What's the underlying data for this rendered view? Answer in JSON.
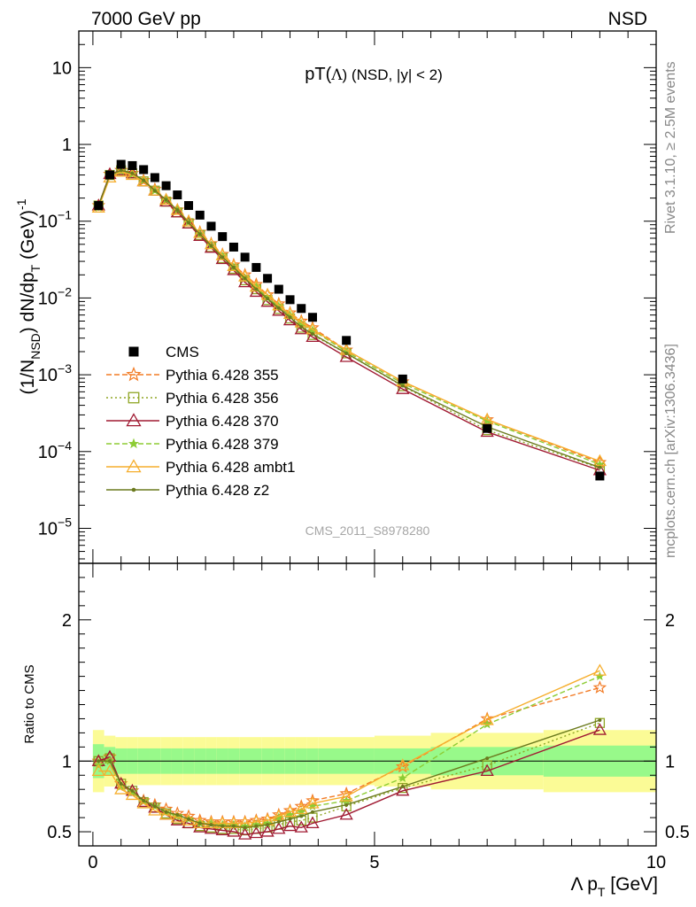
{
  "header": {
    "left": "7000 GeV pp",
    "right": "NSD",
    "side_top": "Rivet 3.1.10, ≥ 2.5M events",
    "side_bottom": "mcplots.cern.ch [arXiv:1306.3436]",
    "analysis_id": "CMS_2011_S8978280"
  },
  "colors": {
    "cms": "#000000",
    "p355": "#f27b25",
    "p356": "#8fa624",
    "p370": "#a01a32",
    "p379": "#8dcc34",
    "ambt1": "#f6ae2d",
    "z2": "#6b7a1e",
    "band_inner": "#98f98a",
    "band_outer": "#fbfb96"
  },
  "chart_data": [
    {
      "type": "line",
      "title": "pT(Λ) (NSD, |y| < 2)",
      "title_main": "pT(",
      "title_lambda": "Λ",
      "title_rest": ") (NSD, |y| < 2)",
      "ylabel_parts": {
        "a": "(1/N",
        "sub1": "NSD",
        "b": ") dN/dp",
        "sub2": "T",
        "c": " (GeV)",
        "sup": "-1"
      },
      "yscale": "log",
      "ylim": [
        3.5e-06,
        30
      ],
      "xlim": [
        -0.25,
        10
      ],
      "y_ticks": [
        {
          "value": 10,
          "label": "10"
        },
        {
          "value": 1,
          "label": "1"
        },
        {
          "value": 0.1,
          "base": "10",
          "exp": "−1"
        },
        {
          "value": 0.01,
          "base": "10",
          "exp": "−2"
        },
        {
          "value": 0.001,
          "base": "10",
          "exp": "−3"
        },
        {
          "value": 0.0001,
          "base": "10",
          "exp": "−4"
        },
        {
          "value": 1e-05,
          "base": "10",
          "exp": "−5"
        }
      ],
      "legend_position": "middle-left",
      "x": [
        0.1,
        0.3,
        0.5,
        0.7,
        0.9,
        1.1,
        1.3,
        1.5,
        1.7,
        1.9,
        2.1,
        2.3,
        2.5,
        2.7,
        2.9,
        3.1,
        3.3,
        3.5,
        3.7,
        3.9,
        4.5,
        5.5,
        7.0,
        9.0
      ],
      "series": [
        {
          "name": "CMS",
          "key": "cms",
          "marker": "square",
          "dash": "none",
          "values": [
            0.16,
            0.4,
            0.55,
            0.53,
            0.47,
            0.37,
            0.29,
            0.22,
            0.16,
            0.12,
            0.086,
            0.063,
            0.046,
            0.034,
            0.025,
            0.018,
            0.013,
            0.0095,
            0.0073,
            0.0056,
            0.0028,
            0.00088,
            0.0002,
            4.8e-05
          ]
        },
        {
          "name": "Pythia 6.428 355",
          "key": "p355",
          "marker": "star",
          "dash": "6,3",
          "values": [
            0.16,
            0.41,
            0.46,
            0.42,
            0.34,
            0.26,
            0.19,
            0.14,
            0.1,
            0.072,
            0.051,
            0.037,
            0.027,
            0.02,
            0.015,
            0.011,
            0.0084,
            0.0064,
            0.005,
            0.0041,
            0.0021,
            0.00081,
            0.00026,
            7.2e-05
          ]
        },
        {
          "name": "Pythia 6.428 356",
          "key": "p356",
          "marker": "square-open",
          "dash": "2,3",
          "values": [
            0.16,
            0.4,
            0.46,
            0.42,
            0.33,
            0.25,
            0.18,
            0.13,
            0.094,
            0.066,
            0.046,
            0.033,
            0.024,
            0.017,
            0.013,
            0.0094,
            0.0072,
            0.0054,
            0.0041,
            0.0033,
            0.0019,
            0.00071,
            0.00019,
            6.1e-05
          ]
        },
        {
          "name": "Pythia 6.428 370",
          "key": "p370",
          "marker": "triangle-open",
          "dash": "none",
          "values": [
            0.16,
            0.41,
            0.46,
            0.42,
            0.33,
            0.25,
            0.18,
            0.13,
            0.093,
            0.064,
            0.045,
            0.032,
            0.023,
            0.016,
            0.012,
            0.0089,
            0.0068,
            0.0051,
            0.0039,
            0.0031,
            0.0017,
            0.00065,
            0.00018,
            5.7e-05
          ]
        },
        {
          "name": "Pythia 6.428 379",
          "key": "p379",
          "marker": "star-small",
          "dash": "6,3",
          "values": [
            0.15,
            0.39,
            0.45,
            0.41,
            0.34,
            0.25,
            0.19,
            0.14,
            0.097,
            0.068,
            0.048,
            0.035,
            0.025,
            0.018,
            0.014,
            0.01,
            0.0078,
            0.006,
            0.0046,
            0.0038,
            0.002,
            0.00077,
            0.00025,
            6.8e-05
          ]
        },
        {
          "name": "Pythia 6.428 ambt1",
          "key": "ambt1",
          "marker": "triangle-open",
          "dash": "none",
          "values": [
            0.15,
            0.37,
            0.44,
            0.4,
            0.33,
            0.25,
            0.19,
            0.14,
            0.099,
            0.07,
            0.05,
            0.036,
            0.026,
            0.019,
            0.014,
            0.011,
            0.008,
            0.0062,
            0.0048,
            0.0039,
            0.0021,
            0.00082,
            0.00026,
            7.5e-05
          ]
        },
        {
          "name": "Pythia 6.428 z2",
          "key": "z2",
          "marker": "dot",
          "dash": "none",
          "values": [
            0.16,
            0.4,
            0.46,
            0.42,
            0.34,
            0.25,
            0.19,
            0.14,
            0.096,
            0.068,
            0.048,
            0.034,
            0.025,
            0.018,
            0.013,
            0.0098,
            0.0074,
            0.0056,
            0.0042,
            0.0034,
            0.0019,
            0.00072,
            0.00021,
            6.2e-05
          ]
        }
      ]
    },
    {
      "type": "line",
      "ylabel": "Ratio to CMS",
      "xlabel_parts": {
        "a": "Λ p",
        "sub": "T",
        "b": " [GeV]"
      },
      "ylim": [
        0.4,
        2.4
      ],
      "xlim": [
        -0.25,
        10
      ],
      "y_ticks": [
        {
          "value": 0.5,
          "label": "0.5"
        },
        {
          "value": 1,
          "label": "1"
        },
        {
          "value": 2,
          "label": "2"
        }
      ],
      "x_ticks": [
        {
          "value": 0,
          "label": "0"
        },
        {
          "value": 5,
          "label": "5"
        },
        {
          "value": 10,
          "label": "10"
        }
      ],
      "band_edges": [
        0,
        0.2,
        0.4,
        0.6,
        0.8,
        1.0,
        1.2,
        1.4,
        1.6,
        1.8,
        2.0,
        2.2,
        2.4,
        2.6,
        2.8,
        3.0,
        3.2,
        3.4,
        3.6,
        3.8,
        4.0,
        5.0,
        6.0,
        8.0,
        10.0
      ],
      "band_inner": [
        0.12,
        0.1,
        0.09,
        0.09,
        0.09,
        0.09,
        0.09,
        0.09,
        0.09,
        0.09,
        0.09,
        0.09,
        0.09,
        0.09,
        0.09,
        0.09,
        0.09,
        0.09,
        0.09,
        0.09,
        0.09,
        0.09,
        0.1,
        0.11
      ],
      "band_outer": [
        0.22,
        0.18,
        0.17,
        0.17,
        0.17,
        0.17,
        0.17,
        0.17,
        0.17,
        0.17,
        0.17,
        0.17,
        0.17,
        0.17,
        0.17,
        0.17,
        0.17,
        0.17,
        0.17,
        0.17,
        0.17,
        0.18,
        0.2,
        0.22
      ],
      "x": [
        0.1,
        0.3,
        0.5,
        0.7,
        0.9,
        1.1,
        1.3,
        1.5,
        1.7,
        1.9,
        2.1,
        2.3,
        2.5,
        2.7,
        2.9,
        3.1,
        3.3,
        3.5,
        3.7,
        3.9,
        4.5,
        5.5,
        7.0,
        9.0
      ],
      "series": [
        {
          "name": "Pythia 6.428 355",
          "key": "p355",
          "marker": "star",
          "dash": "6,3",
          "values": [
            1.0,
            1.03,
            0.84,
            0.79,
            0.72,
            0.69,
            0.66,
            0.63,
            0.61,
            0.58,
            0.57,
            0.57,
            0.57,
            0.57,
            0.58,
            0.59,
            0.62,
            0.65,
            0.68,
            0.72,
            0.77,
            0.96,
            1.3,
            1.52
          ]
        },
        {
          "name": "Pythia 6.428 356",
          "key": "p356",
          "marker": "square-open",
          "dash": "2,3",
          "values": [
            1.0,
            1.02,
            0.84,
            0.79,
            0.71,
            0.67,
            0.63,
            0.59,
            0.56,
            0.54,
            0.53,
            0.52,
            0.52,
            0.51,
            0.52,
            0.53,
            0.55,
            0.57,
            0.58,
            0.6,
            0.68,
            0.81,
            0.97,
            1.27
          ]
        },
        {
          "name": "Pythia 6.428 370",
          "key": "p370",
          "marker": "triangle-open",
          "dash": "none",
          "values": [
            1.0,
            1.03,
            0.84,
            0.79,
            0.71,
            0.67,
            0.62,
            0.58,
            0.56,
            0.53,
            0.52,
            0.51,
            0.5,
            0.48,
            0.49,
            0.5,
            0.52,
            0.54,
            0.53,
            0.56,
            0.62,
            0.79,
            0.93,
            1.22
          ]
        },
        {
          "name": "Pythia 6.428 379",
          "key": "p379",
          "marker": "star-small",
          "dash": "6,3",
          "values": [
            0.97,
            1.0,
            0.82,
            0.78,
            0.72,
            0.68,
            0.64,
            0.61,
            0.59,
            0.56,
            0.56,
            0.55,
            0.55,
            0.54,
            0.55,
            0.56,
            0.6,
            0.62,
            0.64,
            0.68,
            0.72,
            0.88,
            1.26,
            1.6
          ]
        },
        {
          "name": "Pythia 6.428 ambt1",
          "key": "ambt1",
          "marker": "triangle-open",
          "dash": "none",
          "values": [
            0.93,
            0.93,
            0.8,
            0.76,
            0.7,
            0.65,
            0.62,
            0.6,
            0.58,
            0.56,
            0.56,
            0.56,
            0.56,
            0.56,
            0.57,
            0.58,
            0.61,
            0.64,
            0.66,
            0.7,
            0.75,
            0.97,
            1.29,
            1.64
          ]
        },
        {
          "name": "Pythia 6.428 z2",
          "key": "z2",
          "marker": "dot",
          "dash": "none",
          "values": [
            1.0,
            1.0,
            0.84,
            0.79,
            0.72,
            0.68,
            0.64,
            0.62,
            0.59,
            0.56,
            0.55,
            0.54,
            0.54,
            0.53,
            0.54,
            0.55,
            0.57,
            0.59,
            0.61,
            0.64,
            0.69,
            0.82,
            1.02,
            1.29
          ]
        }
      ]
    }
  ]
}
